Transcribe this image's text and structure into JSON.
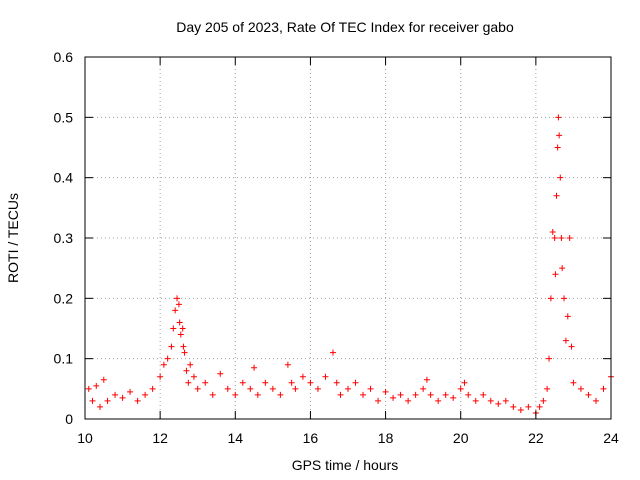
{
  "chart_data": {
    "type": "scatter",
    "title": "Day 205 of 2023, Rate Of TEC Index for receiver gabo",
    "xlabel": "GPS time / hours",
    "ylabel": "ROTI / TECUs",
    "xlim": [
      10,
      24
    ],
    "ylim": [
      0,
      0.6
    ],
    "xticks": [
      10,
      12,
      14,
      16,
      18,
      20,
      22,
      24
    ],
    "xtick_labels": [
      "10",
      "12",
      "14",
      "16",
      "18",
      "20",
      "22",
      "24"
    ],
    "yticks": [
      0,
      0.1,
      0.2,
      0.3,
      0.4,
      0.5,
      0.6
    ],
    "ytick_labels": [
      "0",
      "0.1",
      "0.2",
      "0.3",
      "0.4",
      "0.5",
      "0.6"
    ],
    "grid": true,
    "marker": "+",
    "point_color": "#ff0000",
    "series": [
      {
        "x": [
          10.1,
          10.2,
          10.3,
          10.4,
          10.5,
          10.6,
          10.8,
          11.0,
          11.2,
          11.4,
          11.6,
          11.8,
          12.0,
          12.1,
          12.2,
          12.3,
          12.35,
          12.4,
          12.45,
          12.5,
          12.52,
          12.55,
          12.6,
          12.62,
          12.65,
          12.7,
          12.75,
          12.8,
          12.9,
          13.0,
          13.2,
          13.4,
          13.6,
          13.8,
          14.0,
          14.2,
          14.4,
          14.5,
          14.6,
          14.8,
          15.0,
          15.2,
          15.4,
          15.5,
          15.6,
          15.8,
          16.0,
          16.2,
          16.4,
          16.6,
          16.7,
          16.8,
          17.0,
          17.2,
          17.4,
          17.6,
          17.8,
          18.0,
          18.2,
          18.4,
          18.6,
          18.8,
          19.0,
          19.1,
          19.2,
          19.4,
          19.6,
          19.8,
          20.0,
          20.1,
          20.2,
          20.4,
          20.6,
          20.8,
          21.0,
          21.2,
          21.4,
          21.6,
          21.8,
          22.0,
          22.1,
          22.2,
          22.3,
          22.35,
          22.4,
          22.45,
          22.5,
          22.52,
          22.55,
          22.58,
          22.6,
          22.62,
          22.65,
          22.68,
          22.7,
          22.75,
          22.8,
          22.85,
          22.9,
          22.95,
          23.0,
          23.2,
          23.4,
          23.6,
          23.8,
          24.0
        ],
        "y": [
          0.05,
          0.03,
          0.055,
          0.02,
          0.065,
          0.03,
          0.04,
          0.035,
          0.045,
          0.03,
          0.04,
          0.05,
          0.07,
          0.09,
          0.1,
          0.12,
          0.15,
          0.18,
          0.2,
          0.19,
          0.16,
          0.14,
          0.15,
          0.12,
          0.11,
          0.08,
          0.06,
          0.09,
          0.07,
          0.05,
          0.06,
          0.04,
          0.075,
          0.05,
          0.04,
          0.06,
          0.05,
          0.085,
          0.04,
          0.06,
          0.05,
          0.04,
          0.09,
          0.06,
          0.05,
          0.07,
          0.06,
          0.05,
          0.07,
          0.11,
          0.06,
          0.04,
          0.05,
          0.06,
          0.04,
          0.05,
          0.03,
          0.045,
          0.035,
          0.04,
          0.03,
          0.04,
          0.05,
          0.065,
          0.04,
          0.03,
          0.04,
          0.035,
          0.05,
          0.06,
          0.04,
          0.03,
          0.04,
          0.03,
          0.025,
          0.03,
          0.02,
          0.015,
          0.02,
          0.01,
          0.02,
          0.03,
          0.05,
          0.1,
          0.2,
          0.31,
          0.3,
          0.24,
          0.37,
          0.45,
          0.5,
          0.47,
          0.4,
          0.3,
          0.25,
          0.2,
          0.13,
          0.17,
          0.3,
          0.12,
          0.06,
          0.05,
          0.04,
          0.03,
          0.05,
          0.07
        ]
      }
    ]
  }
}
